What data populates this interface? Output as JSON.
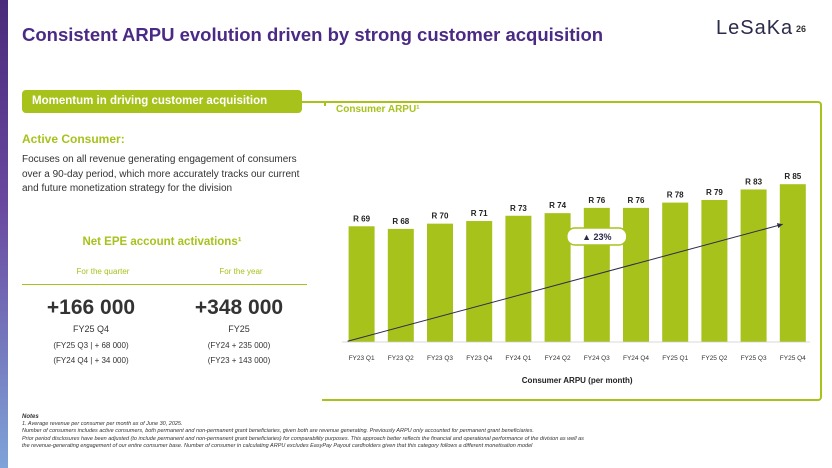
{
  "header": {
    "title": "Consistent ARPU evolution driven by strong customer acquisition",
    "logo_text": "LeSaKa",
    "page_number": "26"
  },
  "left": {
    "pill_label": "Momentum in driving customer acquisition",
    "active_heading": "Active Consumer:",
    "active_description": "Focuses on all revenue generating engagement of consumers over a 90-day period, which more accurately tracks our current and future monetization strategy for the division",
    "net_heading": "Net EPE account activations¹",
    "quarter": {
      "label": "For the quarter",
      "value": "+166 000",
      "period": "FY25 Q4",
      "detail1": "(FY25 Q3 | + 68 000)",
      "detail2": "(FY24 Q4 | + 34 000)"
    },
    "year": {
      "label": "For the year",
      "value": "+348 000",
      "period": "FY25",
      "detail1": "(FY24 + 235 000)",
      "detail2": "(FY23 + 143 000)"
    }
  },
  "chart_title": "Consumer ARPU¹",
  "chart_data": {
    "type": "bar",
    "title": "Consumer ARPU¹",
    "xlabel": "Consumer ARPU (per month)",
    "ylabel": "",
    "categories": [
      "FY23 Q1",
      "FY23 Q2",
      "FY23 Q3",
      "FY23 Q4",
      "FY24 Q1",
      "FY24 Q2",
      "FY24 Q3",
      "FY24 Q4",
      "FY25 Q1",
      "FY25 Q2",
      "FY25 Q3",
      "FY25 Q4"
    ],
    "values": [
      69,
      68,
      70,
      71,
      73,
      74,
      76,
      76,
      78,
      79,
      83,
      85
    ],
    "data_labels": [
      "R 69",
      "R 68",
      "R 70",
      "R 71",
      "R 73",
      "R 74",
      "R 76",
      "R 76",
      "R 78",
      "R 79",
      "R 83",
      "R 85"
    ],
    "ylim": [
      0,
      90
    ],
    "grid": false,
    "bar_color": "#a8c21c",
    "annotation": "▲ 23%",
    "trend_line": true
  },
  "notes": {
    "heading": "Notes",
    "line1": "1.  Average revenue per consumer per month as of June 30, 2025.",
    "line2": "Number of consumers includes active consumers, both permanent and non-permanent grant beneficiaries, given both are revenue generating. Previously ARPU only accounted for permanent grant beneficiaries.",
    "line3": "Prior period disclosures have been adjusted (to include permanent and non-permanent grant beneficiaries) for comparability purposes. This approach better reflects the financial and operational performance of the division as well as",
    "line4": "the revenue-generating engagement of our entire consumer base. Number of consumer in calculating ARPU excludes EasyPay Payout cardholders given that this category follows a different monetisation model"
  }
}
